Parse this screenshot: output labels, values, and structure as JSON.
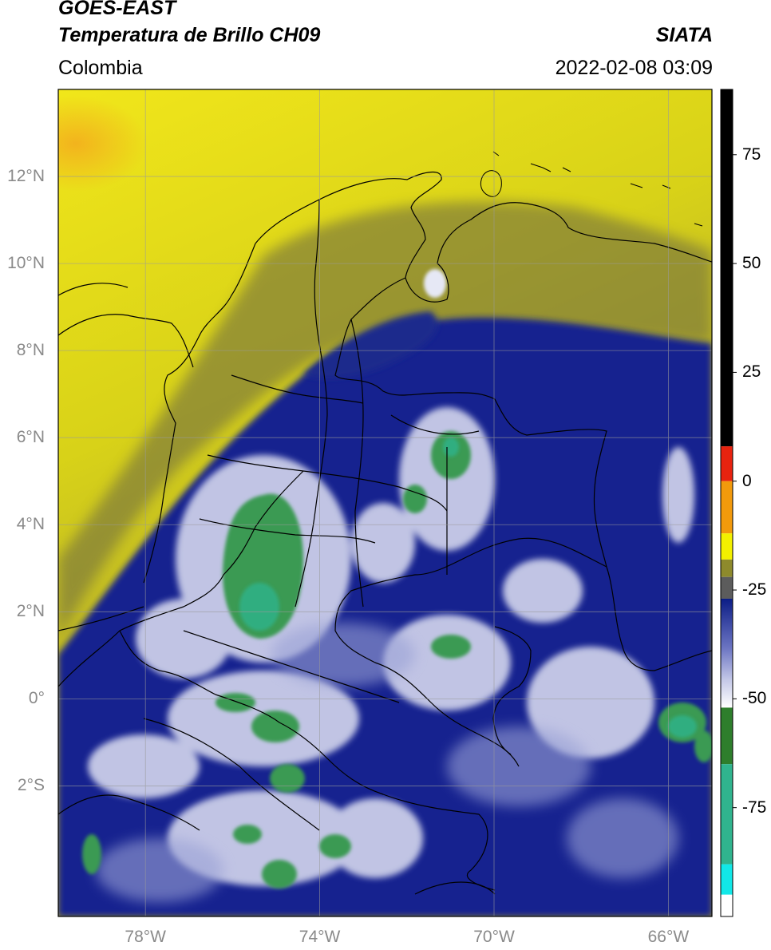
{
  "header": {
    "line1": "GOES-EAST",
    "line2": "Temperatura de Brillo CH09",
    "brand": "SIATA",
    "region": "Colombia",
    "datetime": "2022-02-08 03:09"
  },
  "map": {
    "lat_range": [
      -5.0,
      14.0
    ],
    "lon_range": [
      -80.0,
      -65.0
    ],
    "grid": true,
    "lat_ticks": [
      {
        "value": 12,
        "label": "12°N"
      },
      {
        "value": 10,
        "label": "10°N"
      },
      {
        "value": 8,
        "label": "8°N"
      },
      {
        "value": 6,
        "label": "6°N"
      },
      {
        "value": 4,
        "label": "4°N"
      },
      {
        "value": 2,
        "label": "2°N"
      },
      {
        "value": 0,
        "label": "0°"
      },
      {
        "value": -2,
        "label": "2°S"
      }
    ],
    "lon_ticks": [
      {
        "value": -78,
        "label": "78°W"
      },
      {
        "value": -74,
        "label": "74°W"
      },
      {
        "value": -70,
        "label": "70°W"
      },
      {
        "value": -66,
        "label": "66°W"
      }
    ]
  },
  "colorbar": {
    "range": [
      -100,
      90
    ],
    "ticks": [
      {
        "value": 75,
        "label": "75"
      },
      {
        "value": 50,
        "label": "50"
      },
      {
        "value": 25,
        "label": "25"
      },
      {
        "value": 0,
        "label": "0"
      },
      {
        "value": -25,
        "label": "-25"
      },
      {
        "value": -50,
        "label": "-50"
      },
      {
        "value": -75,
        "label": "-75"
      }
    ],
    "colors": {
      "black": "#000000",
      "red": "#e8230f",
      "orange": "#f29a0c",
      "yellow": "#f3f000",
      "olive": "#8e8a2c",
      "gray": "#5c5c5c",
      "navy": "#0c1d86",
      "lavender": "#c5c9e8",
      "white": "#ffffff",
      "green": "#2e7e2c",
      "teal": "#30b48e",
      "cyan": "#12e8e8"
    }
  },
  "colors": {
    "warm_background": "#e4df1a",
    "cold_cloud": "#1b2a92",
    "cloud_white": "#dde0f2",
    "convective_green": "#3f9a4f",
    "border": "#000000",
    "gridline": "#9a9a9a"
  }
}
